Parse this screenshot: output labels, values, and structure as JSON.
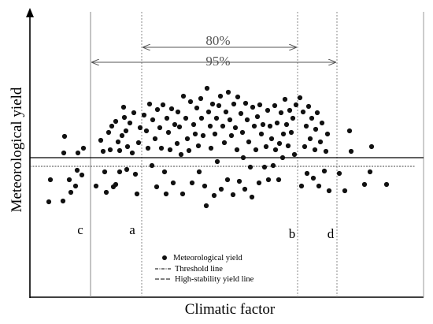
{
  "axes": {
    "y_label": "Meteorological  yield",
    "x_label": "Climatic factor"
  },
  "ranges": {
    "outer_label": "95%",
    "inner_label": "80%"
  },
  "boundary_labels": [
    "c",
    "a",
    "b",
    "d"
  ],
  "legend": {
    "dot_label": "Meteorological yield",
    "threshold_label": "Threshold line",
    "stability_label": "High-stability yield line"
  },
  "colors": {
    "ink": "#000000",
    "dot": "#111111",
    "boundary": "#888888"
  }
}
